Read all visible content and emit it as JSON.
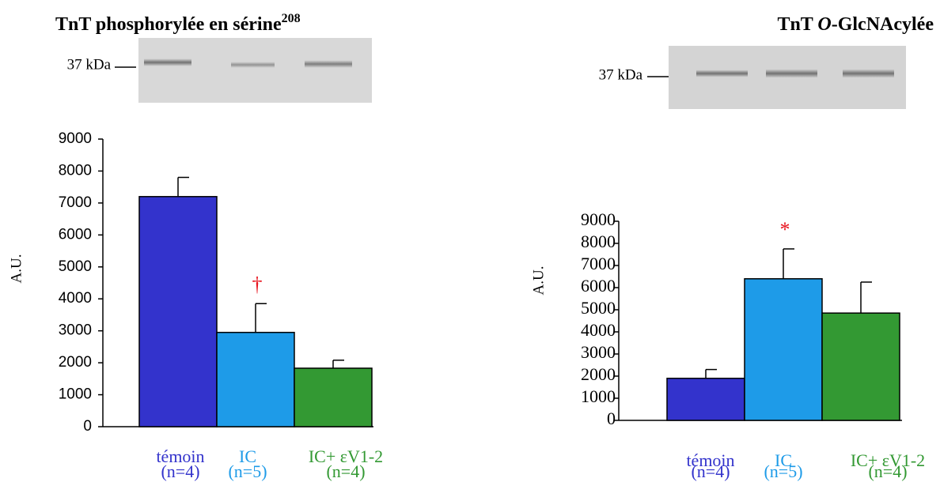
{
  "chart_data": [
    {
      "type": "bar",
      "title": [
        "TnT phosphorylée en sérine",
        "208"
      ],
      "blot_label": "37 kDa",
      "y_label": "A.U.",
      "categories": [
        "témoin",
        "IC",
        "IC+ εV1-2"
      ],
      "sublabels": [
        "(n=4)",
        "(n=5)",
        "(n=4)"
      ],
      "colors": [
        "#3333cc",
        "#1e9be8",
        "#339933"
      ],
      "values": [
        7200,
        2950,
        1830
      ],
      "errors": [
        600,
        900,
        250
      ],
      "annotations": [
        {
          "text": "†",
          "category": 1,
          "color": "#e8141e"
        }
      ],
      "ylim": [
        0,
        9000
      ],
      "yticks": [
        0,
        1000,
        2000,
        3000,
        4000,
        5000,
        6000,
        7000,
        8000,
        9000
      ]
    },
    {
      "type": "bar",
      "title": [
        "TnT ",
        "O",
        "-GlcNAcylée"
      ],
      "blot_label": "37 kDa",
      "y_label": "A.U.",
      "categories": [
        "témoin",
        "IC",
        "IC+ εV1-2"
      ],
      "sublabels": [
        "(n=4)",
        "(n=5)",
        "(n=4)"
      ],
      "colors": [
        "#3333cc",
        "#1e9be8",
        "#339933"
      ],
      "values": [
        1900,
        6400,
        4850
      ],
      "errors": [
        400,
        1350,
        1400
      ],
      "annotations": [
        {
          "text": "*",
          "category": 1,
          "color": "#e8141e"
        }
      ],
      "ylim": [
        0,
        9000
      ],
      "yticks": [
        0,
        1000,
        2000,
        3000,
        4000,
        5000,
        6000,
        7000,
        8000,
        9000
      ]
    }
  ]
}
